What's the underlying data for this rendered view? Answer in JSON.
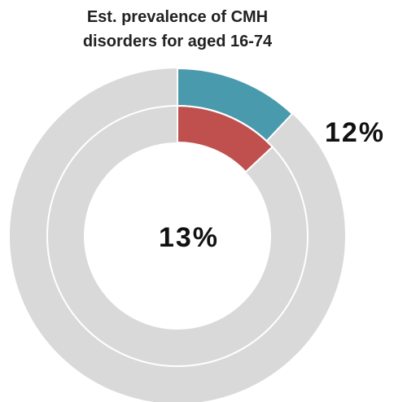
{
  "chart_data": {
    "type": "donut",
    "title": "Est. prevalence of CMH disorders for aged 16-74",
    "series": [
      {
        "color": "#4a9aae",
        "values": [
          12
        ],
        "value_labels": [
          "12%"
        ]
      },
      {
        "color": "#c0504d",
        "values": [
          13
        ],
        "value_labels": [
          "13%"
        ]
      }
    ],
    "remainder_color": "#d9d9d9"
  }
}
